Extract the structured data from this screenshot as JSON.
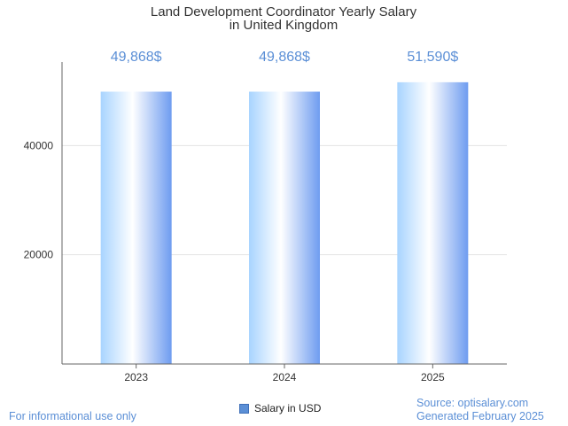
{
  "chart_data": {
    "type": "bar",
    "title_lines": [
      "Land Development Coordinator Yearly Salary",
      "in United Kingdom"
    ],
    "categories": [
      "2023",
      "2024",
      "2025"
    ],
    "series": [
      {
        "name": "Salary in USD",
        "values": [
          49868,
          49868,
          51590
        ]
      }
    ],
    "data_labels": [
      "49,868$",
      "49,868$",
      "51,590$"
    ],
    "yticks": [
      20000,
      40000
    ],
    "ylim": [
      0,
      55300
    ],
    "grid": true,
    "legend": "bottom-center",
    "colors": {
      "gradient": [
        "#a8d4ff",
        "#ffffff",
        "#6e9cf0"
      ],
      "label": "#5b8fd6"
    }
  },
  "footer": {
    "left": "For informational use only",
    "source": "Source: optisalary.com",
    "generated": "Generated February 2025"
  }
}
